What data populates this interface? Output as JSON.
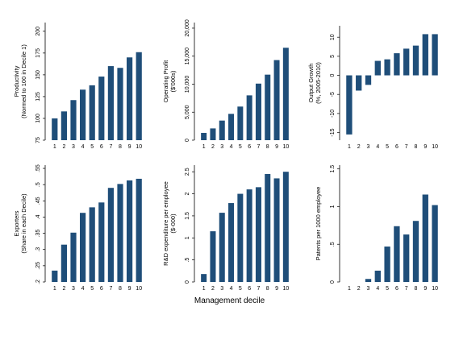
{
  "figure": {
    "xlabel": "Management decile",
    "bar_color": "#1f4e79"
  },
  "chart_data": [
    {
      "type": "bar",
      "categories": [
        "1",
        "2",
        "3",
        "4",
        "5",
        "6",
        "7",
        "8",
        "9",
        "10"
      ],
      "values": [
        100,
        108,
        121,
        133,
        138,
        148,
        160,
        158,
        170,
        176
      ],
      "ylabel": [
        "Productivity",
        "(Normed to 100 in Decile 1)"
      ],
      "ylim": [
        75,
        210
      ],
      "yticks": [
        75,
        100,
        125,
        150,
        175,
        200
      ],
      "ytick_labels": [
        "75",
        "100",
        "125",
        "150",
        "175",
        "200"
      ]
    },
    {
      "type": "bar",
      "categories": [
        "1",
        "2",
        "3",
        "4",
        "5",
        "6",
        "7",
        "8",
        "9",
        "10"
      ],
      "values": [
        1300,
        2100,
        3500,
        4700,
        6000,
        8000,
        10100,
        11700,
        14300,
        16500
      ],
      "ylabel": [
        "Operating Profit",
        "($'000s)"
      ],
      "ylim": [
        0,
        21000
      ],
      "yticks": [
        0,
        5000,
        10000,
        15000,
        20000
      ],
      "ytick_labels": [
        "0",
        "5,000",
        "10,000",
        "15,000",
        "20,000"
      ]
    },
    {
      "type": "bar",
      "categories": [
        "1",
        "2",
        "3",
        "4",
        "5",
        "6",
        "7",
        "8",
        "9",
        "10"
      ],
      "values": [
        -15.5,
        -4,
        -2.5,
        3.8,
        4.2,
        5.8,
        7,
        7.8,
        10.8,
        10.8
      ],
      "ylabel": [
        "Output Growth",
        "(%, 2005-2010)"
      ],
      "ylim": [
        -17,
        13
      ],
      "yticks": [
        -15,
        -10,
        -5,
        0,
        5,
        10
      ],
      "ytick_labels": [
        "-15",
        "-10",
        "-5",
        "0",
        "5",
        "10"
      ]
    },
    {
      "type": "bar",
      "categories": [
        "1",
        "2",
        "3",
        "4",
        "5",
        "6",
        "7",
        "8",
        "9",
        "10"
      ],
      "values": [
        0.235,
        0.315,
        0.352,
        0.413,
        0.43,
        0.445,
        0.49,
        0.502,
        0.513,
        0.518
      ],
      "ylabel": [
        "Exporters",
        "(Share in each Decile)"
      ],
      "ylim": [
        0.2,
        0.56
      ],
      "yticks": [
        0.2,
        0.25,
        0.3,
        0.35,
        0.4,
        0.45,
        0.5,
        0.55
      ],
      "ytick_labels": [
        ".2",
        ".25",
        ".3",
        ".35",
        ".4",
        ".45",
        ".5",
        ".55"
      ]
    },
    {
      "type": "bar",
      "categories": [
        "1",
        "2",
        "3",
        "4",
        "5",
        "6",
        "7",
        "8",
        "9",
        "10"
      ],
      "values": [
        0.18,
        1.15,
        1.57,
        1.79,
        2.0,
        2.1,
        2.15,
        2.45,
        2.35,
        2.5
      ],
      "ylabel": [
        "R&D expenditure per employee",
        "($-000)"
      ],
      "ylim": [
        0,
        2.65
      ],
      "yticks": [
        0,
        0.5,
        1,
        1.5,
        2,
        2.5
      ],
      "ytick_labels": [
        "0",
        ".5",
        "1",
        "1.5",
        "2",
        "2.5"
      ]
    },
    {
      "type": "bar",
      "categories": [
        "1",
        "2",
        "3",
        "4",
        "5",
        "6",
        "7",
        "8",
        "9",
        "10"
      ],
      "values": [
        0,
        0,
        0.04,
        0.15,
        0.47,
        0.74,
        0.63,
        0.81,
        1.16,
        1.02
      ],
      "ylabel": [
        "Patents per 1000 employee",
        ""
      ],
      "ylim": [
        0,
        1.55
      ],
      "yticks": [
        0,
        0.5,
        1,
        1.5
      ],
      "ytick_labels": [
        "0",
        ".5",
        "1",
        "1.5"
      ]
    }
  ]
}
